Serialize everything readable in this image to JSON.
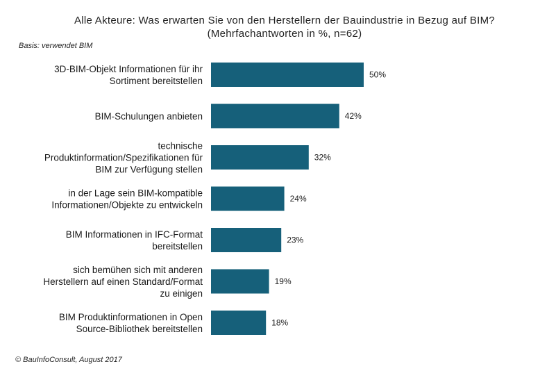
{
  "chart_data": {
    "type": "bar",
    "orientation": "horizontal",
    "title_line1": "Alle Akteure: Was erwarten Sie von den Herstellern der Bauindustrie in Bezug auf BIM?",
    "title_line2": "(Mehrfachantworten in %, n=62)",
    "basis": "Basis: verwendet BIM",
    "categories": [
      [
        "3D-BIM-Objekt Informationen für ihr",
        "Sortiment bereitstellen"
      ],
      [
        "BIM-Schulungen anbieten"
      ],
      [
        "technische",
        "Produktinformation/Spezifikationen für",
        "BIM zur Verfügung stellen"
      ],
      [
        "in der Lage sein BIM-kompatible",
        "Informationen/Objekte zu entwickeln"
      ],
      [
        "BIM Informationen in IFC-Format",
        "bereitstellen"
      ],
      [
        "sich bemühen sich mit anderen",
        "Herstellern auf einen Standard/Format",
        "zu einigen"
      ],
      [
        "BIM Produktinformationen in Open",
        "Source-Bibliothek bereitstellen"
      ]
    ],
    "values": [
      50,
      42,
      32,
      24,
      23,
      19,
      18
    ],
    "value_labels": [
      "50%",
      "42%",
      "32%",
      "24%",
      "23%",
      "19%",
      "18%"
    ],
    "bar_color": "#16607a",
    "xlim": [
      0,
      100
    ],
    "grid": false,
    "legend": "none"
  },
  "footer": "© BauInfoConsult, August 2017"
}
